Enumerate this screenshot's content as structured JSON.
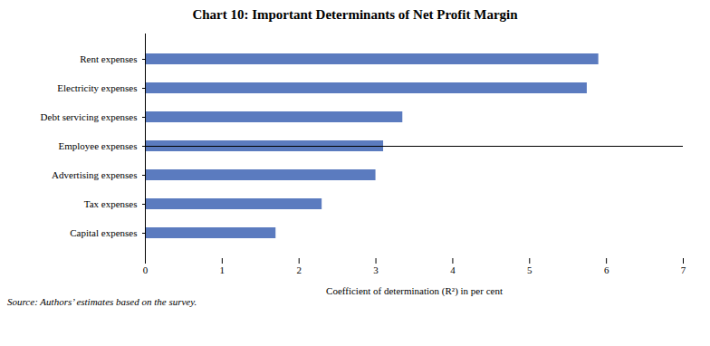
{
  "chart_data": {
    "type": "bar",
    "orientation": "horizontal",
    "title": "Chart 10: Important Determinants of Net Profit Margin",
    "categories": [
      "Capital expenses",
      "Tax expenses",
      "Advertising expenses",
      "Employee expenses",
      "Debt servicing expenses",
      "Electricity expenses",
      "Rent expenses"
    ],
    "values": [
      1.7,
      2.3,
      3.0,
      3.1,
      3.35,
      5.75,
      5.9
    ],
    "color": "#5b7bbf",
    "xlabel": "Coefficient of determination (R²) in per cent",
    "xlim": [
      0,
      7
    ],
    "xticks": [
      0,
      1,
      2,
      3,
      4,
      5,
      6,
      7
    ],
    "grid": false,
    "annotations": [
      "Source: Authors’ estimates based on the survey."
    ]
  }
}
